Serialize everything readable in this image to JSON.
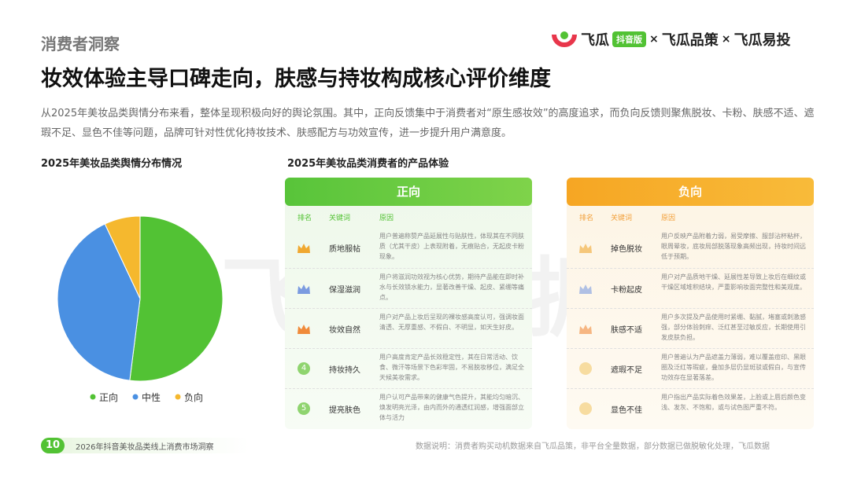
{
  "header": {
    "section": "消费者洞察",
    "title": "妆效体验主导口碑走向，肤感与持妆构成核心评价维度",
    "intro": "从2025年美妆品类舆情分布来看，整体呈现积极向好的舆论氛围。其中，正向反馈集中于消费者对“原生感妆效”的高度追求，而负向反馈则聚焦脱妆、卡粉、肤感不适、遮瑕不足、显色不佳等问题，品牌可针对性优化持妆技术、肤感配方与功效宣传，进一步提升用户满意度。",
    "logo": {
      "brand": "飞瓜",
      "badge": "抖音版",
      "sep1": "×",
      "product1": "飞瓜品策",
      "sep2": "×",
      "product2": "飞瓜易投"
    }
  },
  "chart_data": {
    "type": "pie",
    "title": "2025年美妆品类舆情分布情况",
    "categories": [
      "正向",
      "中性",
      "负向"
    ],
    "values": [
      52,
      41,
      7
    ],
    "colors": [
      "#52c234",
      "#4a90e2",
      "#f5b82e"
    ]
  },
  "experience": {
    "title": "2025年美妆品类消费者的产品体验",
    "columns": [
      "排名",
      "关键词",
      "原因"
    ],
    "positive": {
      "label": "正向",
      "rows": [
        {
          "keyword": "质地服帖",
          "reason": "用户普遍称赞产品延展性与贴肤性，体现其在不同肤质（尤其干皮）上表现附着，无痕贴合，无起皮卡粉现象。"
        },
        {
          "keyword": "保湿滋润",
          "reason": "用户将滋润功效视为核心优势，期待产品能在即时补水与长效锁水能力，显著改善干燥、起皮、紧绷等痛点。"
        },
        {
          "keyword": "妆效自然",
          "reason": "用户对产品上妆后呈现的裸妆感高度认可，强调妆面清透、无厚重感、不假白、不明显，如天生好皮。"
        },
        {
          "rank": "4",
          "keyword": "持妆持久",
          "reason": "用户高度肯定产品长效稳定性，其在日常活动、饮食、微汗等场景下色彩牢固，不易脱妆移位，满足全天候美妆需求。"
        },
        {
          "rank": "5",
          "keyword": "提亮肤色",
          "reason": "用户认可产品带来的健康气色提升，其能均匀暗沉、焕发明亮光泽，由内而外的通透红润感，增强面部立体与活力"
        }
      ]
    },
    "negative": {
      "label": "负向",
      "rows": [
        {
          "keyword": "掉色脱妆",
          "reason": "用户反映产品附着力弱，易受摩擦、服部沾杯粘杯，眼周晕妆，底妆局部脱落现象高频出现，持妆时间远低于预期。"
        },
        {
          "keyword": "卡粉起皮",
          "reason": "用户对产品质地干燥、延展性差导致上妆后在细纹或干燥区域堆积结块，严重影响妆面完整性和美观度。"
        },
        {
          "keyword": "肤感不适",
          "reason": "用户多次提及产品使用时紧绷、黏腻，堵塞或刺激感强，部分体验刺痒、泛红甚至过敏反应，长期使用引发皮肤负担。"
        },
        {
          "keyword": "遮瑕不足",
          "reason": "用户普遍认为产品遮盖力薄弱，难以覆盖痘印、黑眼圈及泛红等瑕疵，叠加多层仍显斑驳或假白，与宣传功效存在显著落差。"
        },
        {
          "keyword": "显色不佳",
          "reason": "用户指出产品实际着色效果差，上脸或上唇后颜色变浅、发灰、不饱和，或与试色图严重不符。"
        }
      ]
    }
  },
  "watermark": "飞瓜数据",
  "footer": {
    "page": "10",
    "report": "2026年抖音美妆品类线上消费市场洞察",
    "note": "数据说明：消费者购买动机数据来自飞瓜品策，非平台全量数据，部分数据已做脱敏化处理，飞瓜数据"
  }
}
